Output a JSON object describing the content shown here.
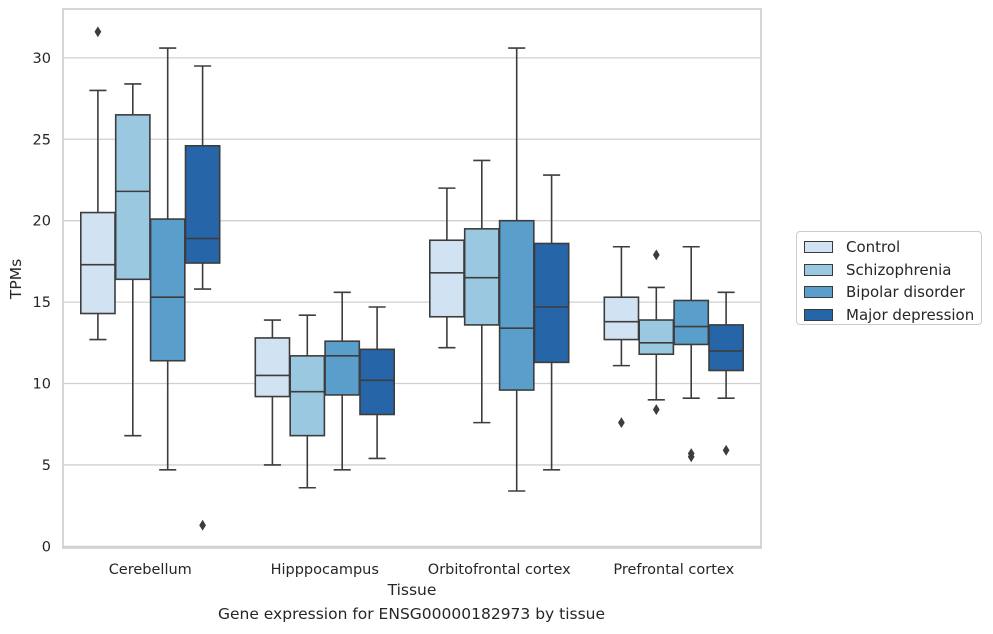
{
  "chart_data": {
    "type": "box",
    "xlabel": "Tissue",
    "ylabel": "TPMs",
    "caption": "Gene expression for ENSG00000182973 by tissue",
    "categories": [
      "Cerebellum",
      "Hipppocampus",
      "Orbitofrontal cortex",
      "Prefrontal cortex"
    ],
    "ylim": [
      -0.1,
      33.0
    ],
    "yticks": [
      0,
      5,
      10,
      15,
      20,
      25,
      30
    ],
    "grid": "horizontal",
    "legend_position": "right",
    "series": [
      {
        "name": "Control",
        "color": "#d1e2f2",
        "boxes": [
          {
            "whislo": 12.7,
            "q1": 14.3,
            "median": 17.3,
            "q3": 20.5,
            "whishi": 28.0,
            "fliers": [
              31.6
            ]
          },
          {
            "whislo": 5.0,
            "q1": 9.2,
            "median": 10.5,
            "q3": 12.8,
            "whishi": 13.9,
            "fliers": []
          },
          {
            "whislo": 12.2,
            "q1": 14.1,
            "median": 16.8,
            "q3": 18.8,
            "whishi": 22.0,
            "fliers": []
          },
          {
            "whislo": 11.1,
            "q1": 12.7,
            "median": 13.8,
            "q3": 15.3,
            "whishi": 18.4,
            "fliers": [
              7.6
            ]
          }
        ]
      },
      {
        "name": "Schizophrenia",
        "color": "#9ac8e0",
        "boxes": [
          {
            "whislo": 6.8,
            "q1": 16.4,
            "median": 21.8,
            "q3": 26.5,
            "whishi": 28.4,
            "fliers": []
          },
          {
            "whislo": 3.6,
            "q1": 6.8,
            "median": 9.5,
            "q3": 11.7,
            "whishi": 14.2,
            "fliers": []
          },
          {
            "whislo": 7.6,
            "q1": 13.6,
            "median": 16.5,
            "q3": 19.5,
            "whishi": 23.7,
            "fliers": []
          },
          {
            "whislo": 9.0,
            "q1": 11.8,
            "median": 12.5,
            "q3": 13.9,
            "whishi": 15.9,
            "fliers": [
              8.4,
              17.9
            ]
          }
        ]
      },
      {
        "name": "Bipolar disorder",
        "color": "#5a9ecc",
        "boxes": [
          {
            "whislo": 4.7,
            "q1": 11.4,
            "median": 15.3,
            "q3": 20.1,
            "whishi": 30.6,
            "fliers": []
          },
          {
            "whislo": 4.7,
            "q1": 9.3,
            "median": 11.7,
            "q3": 12.6,
            "whishi": 15.6,
            "fliers": []
          },
          {
            "whislo": 3.4,
            "q1": 9.6,
            "median": 13.4,
            "q3": 20.0,
            "whishi": 30.6,
            "fliers": []
          },
          {
            "whislo": 9.1,
            "q1": 12.4,
            "median": 13.5,
            "q3": 15.1,
            "whishi": 18.4,
            "fliers": [
              5.5,
              5.7
            ]
          }
        ]
      },
      {
        "name": "Major depression",
        "color": "#2565a8",
        "boxes": [
          {
            "whislo": 15.8,
            "q1": 17.4,
            "median": 18.9,
            "q3": 24.6,
            "whishi": 29.5,
            "fliers": [
              1.3
            ]
          },
          {
            "whislo": 5.4,
            "q1": 8.1,
            "median": 10.2,
            "q3": 12.1,
            "whishi": 14.7,
            "fliers": []
          },
          {
            "whislo": 4.7,
            "q1": 11.3,
            "median": 14.7,
            "q3": 18.6,
            "whishi": 22.8,
            "fliers": []
          },
          {
            "whislo": 9.1,
            "q1": 10.8,
            "median": 12.0,
            "q3": 13.6,
            "whishi": 15.6,
            "fliers": [
              5.9
            ]
          }
        ]
      }
    ]
  }
}
